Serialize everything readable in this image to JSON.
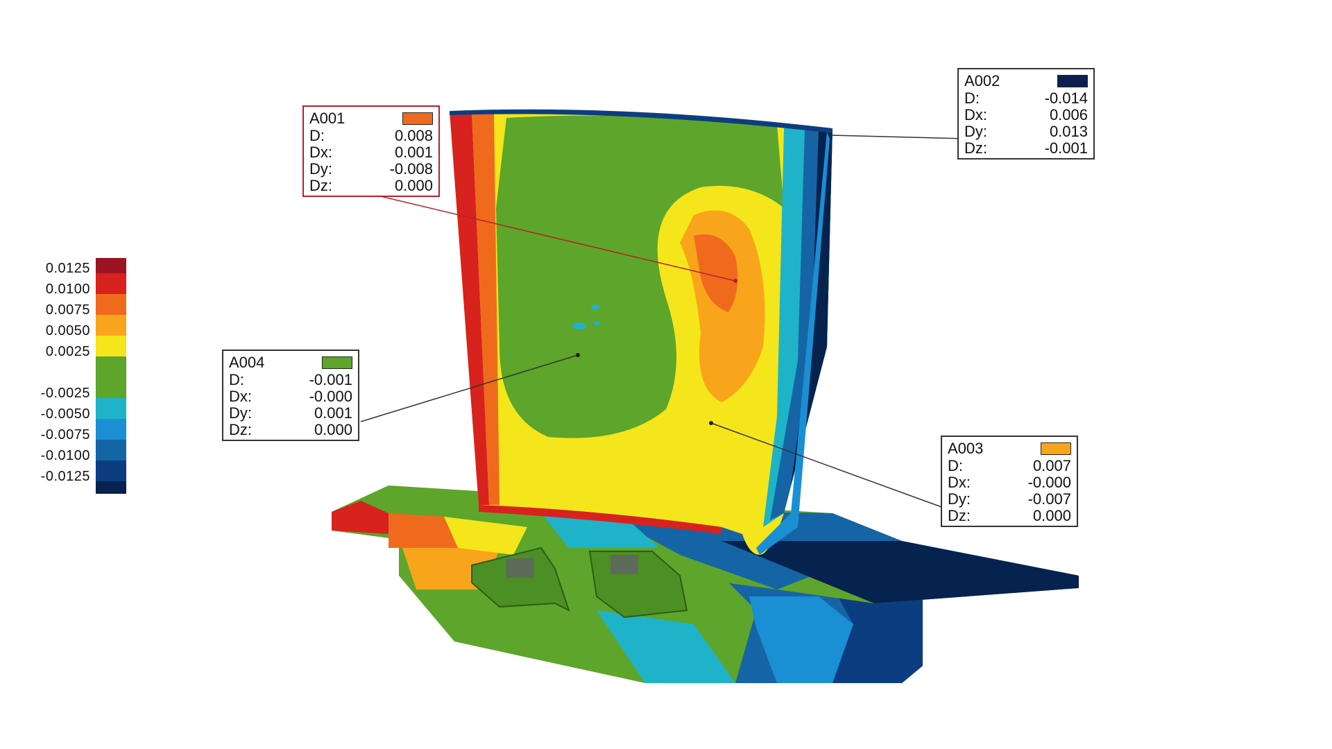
{
  "legend": {
    "ticks": [
      "0.0125",
      "0.0100",
      "0.0075",
      "0.0050",
      "0.0025",
      "-0.0025",
      "-0.0050",
      "-0.0075",
      "-0.0100",
      "-0.0125"
    ],
    "colors": [
      "#9c1423",
      "#d8221d",
      "#f06a1e",
      "#f9a51b",
      "#f4e61a",
      "#5ea52b",
      "#5ea52b",
      "#1fb3c9",
      "#1a8fd3",
      "#1565a6",
      "#0c3d80",
      "#06224f"
    ]
  },
  "callouts": [
    {
      "id": "A001",
      "color": "#f06a1e",
      "D": "0.008",
      "Dx": "0.001",
      "Dy": "-0.008",
      "Dz": "0.000"
    },
    {
      "id": "A002",
      "color": "#0c1f4e",
      "D": "-0.014",
      "Dx": "0.006",
      "Dy": "0.013",
      "Dz": "-0.001"
    },
    {
      "id": "A003",
      "color": "#f9a51b",
      "D": "0.007",
      "Dx": "-0.000",
      "Dy": "-0.007",
      "Dz": "0.000"
    },
    {
      "id": "A004",
      "color": "#5ea52b",
      "D": "-0.001",
      "Dx": "-0.000",
      "Dy": "0.001",
      "Dz": "0.000"
    }
  ],
  "labels": {
    "d": "D:",
    "dx": "Dx:",
    "dy": "Dy:",
    "dz": "Dz:"
  },
  "colors": {
    "darkred": "#9c1423",
    "red": "#d8221d",
    "orange": "#f06a1e",
    "amber": "#f9a51b",
    "yellow": "#f4e61a",
    "green": "#5ea52b",
    "cyan": "#1fb3c9",
    "lightblue": "#1a8fd3",
    "blue": "#1565a6",
    "darkblue": "#0c3d80",
    "navy": "#06224f"
  }
}
